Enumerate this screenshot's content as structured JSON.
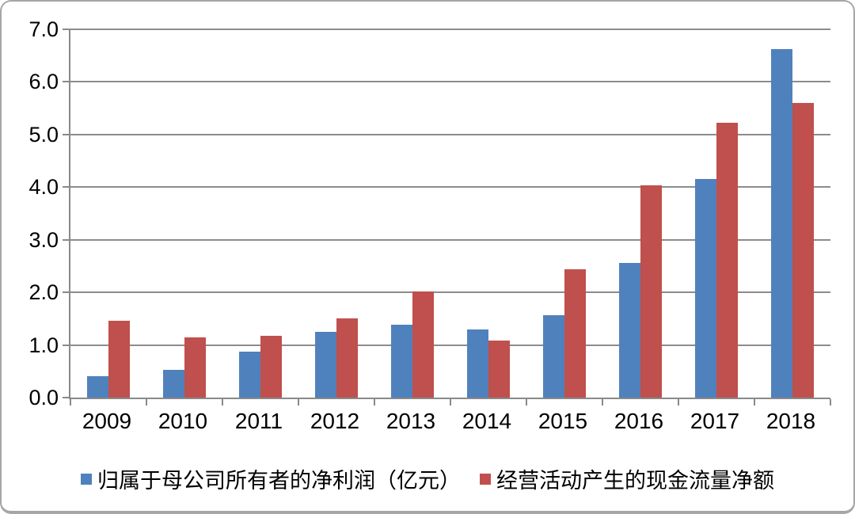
{
  "chart_data": {
    "type": "bar",
    "title": "",
    "xlabel": "",
    "ylabel": "",
    "categories": [
      "2009",
      "2010",
      "2011",
      "2012",
      "2013",
      "2014",
      "2015",
      "2016",
      "2017",
      "2018"
    ],
    "series": [
      {
        "key": "net-profit",
        "name": "归属于母公司所有者的净利润（亿元）",
        "color": "#4F81BD",
        "values": [
          0.4,
          0.53,
          0.87,
          1.25,
          1.39,
          1.3,
          1.57,
          2.56,
          4.15,
          6.62
        ]
      },
      {
        "key": "operating-cash-flow",
        "name": "经营活动产生的现金流量净额",
        "color": "#C0504D",
        "values": [
          1.46,
          1.14,
          1.18,
          1.51,
          2.01,
          1.08,
          2.44,
          4.03,
          5.22,
          5.6
        ]
      }
    ],
    "ylim": [
      0,
      7
    ],
    "ytick_step": 1.0,
    "ytick_labels": [
      "0.0",
      "1.0",
      "2.0",
      "3.0",
      "4.0",
      "5.0",
      "6.0",
      "7.0"
    ],
    "grid": true,
    "legend_position": "bottom",
    "axis_color": "#898989",
    "grid_color": "#8C8C8C",
    "text_color": "#000000",
    "background_color": "#FFFFFF",
    "frame_border_color": "#A6A6A6"
  }
}
